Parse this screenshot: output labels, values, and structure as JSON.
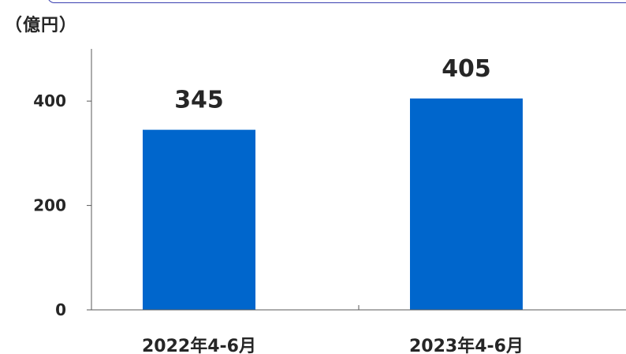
{
  "unit_label": "（億円）",
  "chart_data": {
    "type": "bar",
    "categories": [
      "2022年4-6月",
      "2023年4-6月"
    ],
    "values": [
      345,
      405
    ],
    "data_labels": [
      "345",
      "405"
    ],
    "ylabel": "（億円）",
    "ylim": [
      0,
      500
    ],
    "yticks": [
      0,
      200,
      400
    ],
    "ytick_labels": [
      "0",
      "200",
      "400"
    ],
    "bar_color": "#0066cc",
    "axis_color": "#595959",
    "grid": false,
    "legend": "none"
  }
}
